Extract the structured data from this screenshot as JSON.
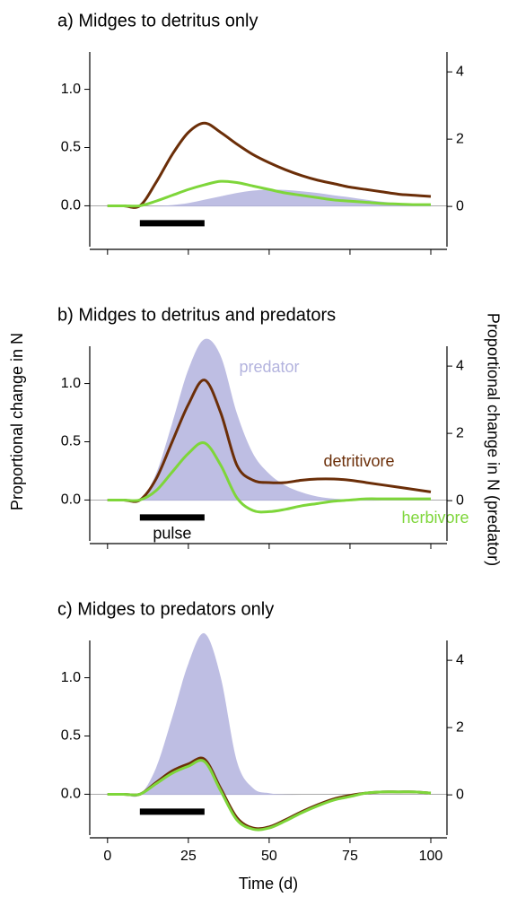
{
  "chart_data": [
    {
      "type": "line",
      "title": "a) Midges to detritus only",
      "x": [
        0,
        5,
        10,
        15,
        20,
        25,
        30,
        35,
        40,
        45,
        50,
        55,
        60,
        65,
        70,
        75,
        80,
        85,
        90,
        95,
        100
      ],
      "series": [
        {
          "color": "#b3b3de",
          "style": "area",
          "axis": "y2",
          "values": [
            0,
            0,
            0,
            0.01,
            0.04,
            0.1,
            0.2,
            0.3,
            0.4,
            0.47,
            0.5,
            0.49,
            0.45,
            0.4,
            0.33,
            0.27,
            0.2,
            0.14,
            0.1,
            0.07,
            0.05
          ]
        },
        {
          "color": "#6b2e08",
          "values": [
            0,
            0,
            0,
            0.2,
            0.44,
            0.63,
            0.71,
            0.63,
            0.53,
            0.44,
            0.37,
            0.31,
            0.26,
            0.22,
            0.19,
            0.16,
            0.14,
            0.12,
            0.1,
            0.09,
            0.08
          ]
        },
        {
          "color": "#7ed63a",
          "values": [
            0,
            0,
            0,
            0.04,
            0.09,
            0.14,
            0.18,
            0.21,
            0.2,
            0.17,
            0.14,
            0.11,
            0.09,
            0.07,
            0.05,
            0.04,
            0.03,
            0.02,
            0.015,
            0.01,
            0.01
          ]
        }
      ],
      "pulse": [
        10,
        30
      ],
      "xlim": [
        -5.5,
        105
      ],
      "xticks": [
        0,
        25,
        50,
        75,
        100
      ],
      "ylim": [
        -0.32,
        1.32
      ],
      "yticks": [
        {
          "value": 0,
          "label": "0.0"
        },
        {
          "value": 0.5,
          "label": "0.5"
        },
        {
          "value": 1,
          "label": "1.0"
        }
      ],
      "y2lim": [
        -1.09,
        4.59
      ],
      "y2ticks": [
        0,
        2,
        4
      ]
    },
    {
      "type": "line",
      "title": "b) Midges to detritus and predators",
      "ylabel": "Proportional change in N",
      "y2label": "Proportional change in N (predator)",
      "x": [
        0,
        5,
        10,
        15,
        20,
        25,
        30,
        35,
        40,
        45,
        50,
        55,
        60,
        65,
        70,
        75,
        80,
        85,
        90,
        95,
        100
      ],
      "series": [
        {
          "name": "predator",
          "color": "#b3b3de",
          "style": "area",
          "axis": "y2",
          "values": [
            0,
            0,
            0,
            0.8,
            2.3,
            3.9,
            4.8,
            4.3,
            2.6,
            1.4,
            0.8,
            0.45,
            0.25,
            0.12,
            0.06,
            0.03,
            0.01,
            0,
            0,
            0,
            0
          ]
        },
        {
          "name": "detritivore",
          "color": "#6b2e08",
          "values": [
            0,
            0,
            0,
            0.18,
            0.5,
            0.82,
            1.03,
            0.75,
            0.3,
            0.17,
            0.15,
            0.15,
            0.17,
            0.18,
            0.18,
            0.17,
            0.15,
            0.13,
            0.11,
            0.09,
            0.07
          ]
        },
        {
          "name": "herbivore",
          "color": "#7ed63a",
          "values": [
            0,
            0,
            0,
            0.08,
            0.24,
            0.4,
            0.49,
            0.3,
            0.02,
            -0.09,
            -0.1,
            -0.08,
            -0.05,
            -0.03,
            -0.01,
            0,
            0.01,
            0.01,
            0.01,
            0.01,
            0.01
          ]
        }
      ],
      "pulse": [
        10,
        30
      ],
      "annotations": [
        "pulse"
      ],
      "xlim": [
        -5.5,
        105
      ],
      "xticks": [
        0,
        25,
        50,
        75,
        100
      ],
      "ylim": [
        -0.32,
        1.32
      ],
      "yticks": [
        {
          "value": 0,
          "label": "0.0"
        },
        {
          "value": 0.5,
          "label": "0.5"
        },
        {
          "value": 1,
          "label": "1.0"
        }
      ],
      "y2lim": [
        -1.09,
        4.59
      ],
      "y2ticks": [
        0,
        2,
        4
      ]
    },
    {
      "type": "line",
      "title": "c) Midges to predators only",
      "xlabel": "Time (d)",
      "x": [
        0,
        5,
        10,
        15,
        20,
        25,
        30,
        35,
        40,
        45,
        50,
        55,
        60,
        65,
        70,
        75,
        80,
        85,
        90,
        95,
        100
      ],
      "series": [
        {
          "color": "#b3b3de",
          "style": "area",
          "axis": "y2",
          "values": [
            0,
            0,
            0,
            0.8,
            2.3,
            3.9,
            4.8,
            3.5,
            1.0,
            0.2,
            0.05,
            0.01,
            0,
            0,
            0,
            0,
            0,
            0,
            0,
            0,
            0
          ]
        },
        {
          "color": "#6b2e08",
          "values": [
            0,
            0,
            0,
            0.1,
            0.2,
            0.26,
            0.3,
            0.05,
            -0.2,
            -0.29,
            -0.28,
            -0.22,
            -0.15,
            -0.09,
            -0.04,
            -0.01,
            0.01,
            0.02,
            0.02,
            0.02,
            0.01
          ]
        },
        {
          "color": "#7ed63a",
          "values": [
            0,
            0,
            0,
            0.09,
            0.18,
            0.24,
            0.28,
            0.03,
            -0.22,
            -0.3,
            -0.29,
            -0.23,
            -0.16,
            -0.1,
            -0.05,
            -0.02,
            0.01,
            0.02,
            0.02,
            0.02,
            0.01
          ]
        }
      ],
      "pulse": [
        10,
        30
      ],
      "xlim": [
        -5.5,
        105
      ],
      "xticks": [
        0,
        25,
        50,
        75,
        100
      ],
      "ylim": [
        -0.32,
        1.32
      ],
      "yticks": [
        {
          "value": 0,
          "label": "0.0"
        },
        {
          "value": 0.5,
          "label": "0.5"
        },
        {
          "value": 1,
          "label": "1.0"
        }
      ],
      "y2lim": [
        -1.09,
        4.59
      ],
      "y2ticks": [
        0,
        2,
        4
      ]
    }
  ]
}
